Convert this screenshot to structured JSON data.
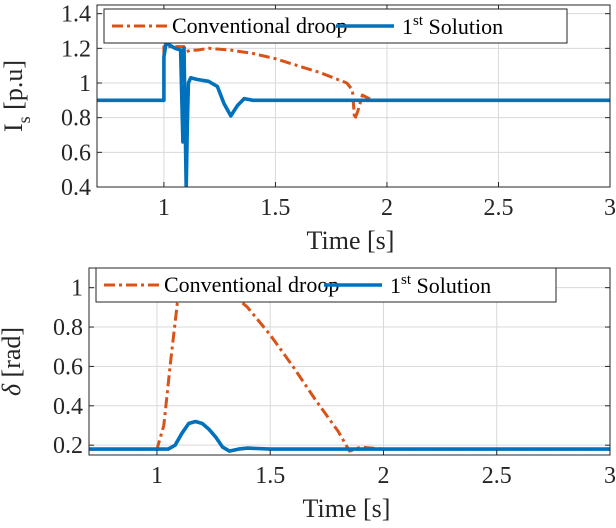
{
  "colors": {
    "conventional": "#D95319",
    "solution": "#0072BD",
    "grid": "#d9d9d9",
    "axis": "#262626"
  },
  "chart_data": [
    {
      "type": "line",
      "xlabel": "Time [s]",
      "ylabel": {
        "main": "I",
        "sub": "s",
        "unit": " [p.u]"
      },
      "xlim": [
        0.7,
        3.0
      ],
      "ylim": [
        0.4,
        1.45
      ],
      "xticks": [
        1,
        1.5,
        2,
        2.5,
        3
      ],
      "xtick_labels": [
        "1",
        "1.5",
        "2",
        "2.5",
        "3"
      ],
      "yticks": [
        0.4,
        0.6,
        0.8,
        1.0,
        1.2,
        1.4
      ],
      "ytick_labels": [
        "0.4",
        "0.6",
        "0.8",
        "1",
        "1.2",
        "1.4"
      ],
      "grid": true,
      "legend_position": "top",
      "series": [
        {
          "name": "Conventional droop",
          "legend": {
            "text": "Conventional droop"
          },
          "color": "#D95319",
          "style": "dashdot",
          "x": [
            0.7,
            1.0,
            1.0,
            1.09,
            1.1,
            1.12,
            1.15,
            1.2,
            1.3,
            1.4,
            1.5,
            1.6,
            1.7,
            1.82,
            1.845,
            1.855,
            1.87,
            1.89,
            1.92,
            1.95,
            2.0,
            3.0
          ],
          "y": [
            0.9,
            0.9,
            1.21,
            1.21,
            1.18,
            1.19,
            1.19,
            1.2,
            1.19,
            1.17,
            1.14,
            1.1,
            1.06,
            1.0,
            0.96,
            0.79,
            0.84,
            0.93,
            0.91,
            0.9,
            0.9,
            0.9
          ]
        },
        {
          "name": "1st Solution",
          "legend": {
            "text": "1",
            "sup": "st",
            "rest": " Solution"
          },
          "color": "#0072BD",
          "style": "solid",
          "x": [
            0.7,
            1.0,
            1.0,
            1.01,
            1.05,
            1.075,
            1.085,
            1.09,
            1.1,
            1.105,
            1.11,
            1.12,
            1.15,
            1.2,
            1.24,
            1.27,
            1.3,
            1.33,
            1.36,
            1.4,
            1.5,
            3.0
          ],
          "y": [
            0.9,
            0.9,
            1.15,
            1.23,
            1.2,
            1.19,
            0.66,
            1.2,
            0.39,
            0.75,
            1.0,
            1.03,
            1.02,
            1.01,
            0.98,
            0.88,
            0.81,
            0.87,
            0.91,
            0.9,
            0.9,
            0.9
          ]
        }
      ]
    },
    {
      "type": "line",
      "xlabel": "Time [s]",
      "ylabel": {
        "main": "δ",
        "sub": "",
        "unit": " [rad]"
      },
      "xlim": [
        0.7,
        3.0
      ],
      "ylim": [
        0.15,
        1.1
      ],
      "xticks": [
        1,
        1.5,
        2,
        2.5,
        3
      ],
      "xtick_labels": [
        "1",
        "1.5",
        "2",
        "2.5",
        "3"
      ],
      "yticks": [
        0.2,
        0.4,
        0.6,
        0.8,
        1.0
      ],
      "ytick_labels": [
        "0.2",
        "0.4",
        "0.6",
        "0.8",
        "1"
      ],
      "grid": true,
      "legend_position": "top",
      "series": [
        {
          "name": "Conventional droop",
          "legend": {
            "text": "Conventional droop"
          },
          "color": "#D95319",
          "style": "dashdot",
          "x": [
            0.7,
            1.0,
            1.03,
            1.06,
            1.09,
            1.12,
            1.15,
            1.18,
            1.22,
            1.3,
            1.4,
            1.5,
            1.6,
            1.7,
            1.8,
            1.85,
            1.9,
            2.0,
            3.0
          ],
          "y": [
            0.18,
            0.18,
            0.3,
            0.62,
            0.92,
            1.02,
            1.06,
            1.07,
            1.06,
            1.0,
            0.9,
            0.76,
            0.6,
            0.43,
            0.27,
            0.17,
            0.19,
            0.18,
            0.18
          ],
          "peak": {
            "x": 1.18,
            "y": 1.07
          }
        },
        {
          "name": "1st Solution",
          "legend": {
            "text": "1",
            "sup": "st",
            "rest": " Solution"
          },
          "color": "#0072BD",
          "style": "solid",
          "x": [
            0.7,
            1.05,
            1.08,
            1.11,
            1.14,
            1.17,
            1.2,
            1.23,
            1.26,
            1.29,
            1.32,
            1.36,
            1.4,
            1.5,
            3.0
          ],
          "y": [
            0.18,
            0.18,
            0.2,
            0.26,
            0.31,
            0.32,
            0.31,
            0.28,
            0.24,
            0.19,
            0.17,
            0.18,
            0.185,
            0.18,
            0.18
          ]
        }
      ]
    }
  ]
}
